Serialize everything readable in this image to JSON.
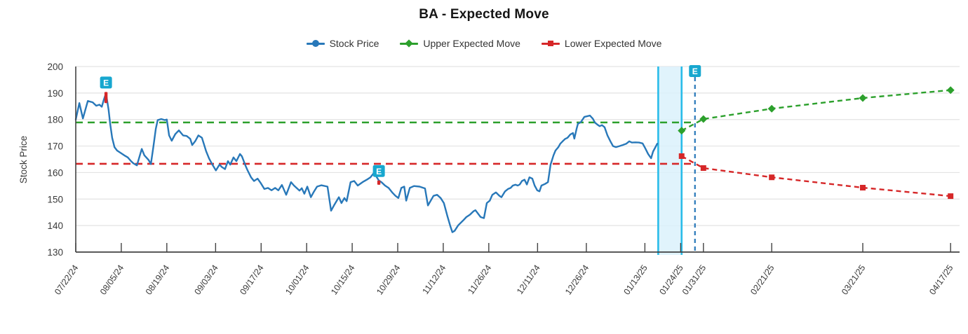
{
  "title": "BA - Expected Move",
  "legend": [
    {
      "label": "Stock Price",
      "color": "#2878b9",
      "marker": "circle"
    },
    {
      "label": "Upper Expected Move",
      "color": "#2ca02c",
      "marker": "diamond"
    },
    {
      "label": "Lower Expected Move",
      "color": "#d62728",
      "marker": "square"
    }
  ],
  "y_axis": {
    "title": "Stock Price",
    "min": 130,
    "max": 200,
    "step": 10
  },
  "x_axis": {
    "ticks": [
      {
        "label": "07/22/24",
        "d": 0
      },
      {
        "label": "08/05/24",
        "d": 14
      },
      {
        "label": "08/19/24",
        "d": 28
      },
      {
        "label": "09/03/24",
        "d": 43
      },
      {
        "label": "09/17/24",
        "d": 57
      },
      {
        "label": "10/01/24",
        "d": 71
      },
      {
        "label": "10/15/24",
        "d": 85
      },
      {
        "label": "10/29/24",
        "d": 99
      },
      {
        "label": "11/12/24",
        "d": 113
      },
      {
        "label": "11/26/24",
        "d": 127
      },
      {
        "label": "12/11/24",
        "d": 142
      },
      {
        "label": "12/26/24",
        "d": 157
      },
      {
        "label": "01/13/25",
        "d": 175
      },
      {
        "label": "01/24/25",
        "d": 186
      },
      {
        "label": "01/31/25",
        "d": 193
      },
      {
        "label": "02/21/25",
        "d": 214
      },
      {
        "label": "03/21/25",
        "d": 242
      },
      {
        "label": "04/17/25",
        "d": 269
      }
    ]
  },
  "chart_data": {
    "type": "line",
    "title": "BA - Expected Move",
    "xlabel": "",
    "ylabel": "Stock Price",
    "ylim": [
      130,
      200
    ],
    "grid": "horizontal",
    "legend_position": "top-center",
    "x_unit": "calendar days since 07/22/24",
    "series": [
      {
        "name": "Stock Price",
        "color": "#2878b9",
        "style": "solid",
        "points": [
          [
            0,
            180.0
          ],
          [
            1.1,
            186.2
          ],
          [
            2.2,
            180.4
          ],
          [
            3.7,
            187.0
          ],
          [
            5.2,
            186.5
          ],
          [
            6.3,
            185.2
          ],
          [
            7.3,
            185.6
          ],
          [
            8,
            184.8
          ],
          [
            8.6,
            187.4
          ],
          [
            9.3,
            189.9
          ],
          [
            10.1,
            183.7
          ],
          [
            10.6,
            178.3
          ],
          [
            11.2,
            173.1
          ],
          [
            11.9,
            169.6
          ],
          [
            12.7,
            168.3
          ],
          [
            13.8,
            167.4
          ],
          [
            14.9,
            166.5
          ],
          [
            16,
            165.7
          ],
          [
            17,
            164.3
          ],
          [
            17.7,
            163.5
          ],
          [
            18.8,
            162.7
          ],
          [
            20.3,
            168.9
          ],
          [
            21.1,
            166.5
          ],
          [
            22.4,
            164.7
          ],
          [
            23.1,
            163.2
          ],
          [
            23.9,
            170.0
          ],
          [
            24.6,
            176.5
          ],
          [
            25.2,
            179.8
          ],
          [
            26.3,
            180.2
          ],
          [
            27.4,
            179.8
          ],
          [
            28,
            180.0
          ],
          [
            28.7,
            174.0
          ],
          [
            29.5,
            172.0
          ],
          [
            30.6,
            174.5
          ],
          [
            31.7,
            175.9
          ],
          [
            33,
            174.0
          ],
          [
            34.1,
            173.8
          ],
          [
            35.2,
            172.7
          ],
          [
            35.8,
            170.4
          ],
          [
            36.7,
            171.8
          ],
          [
            37.7,
            174.0
          ],
          [
            38.8,
            173.1
          ],
          [
            40.1,
            168.0
          ],
          [
            41,
            165.3
          ],
          [
            42.1,
            162.8
          ],
          [
            43.1,
            160.8
          ],
          [
            44.2,
            163.0
          ],
          [
            44.9,
            162.1
          ],
          [
            45.9,
            161.3
          ],
          [
            46.8,
            164.3
          ],
          [
            47.5,
            163.0
          ],
          [
            48.5,
            165.7
          ],
          [
            49.4,
            164.3
          ],
          [
            50.5,
            167.0
          ],
          [
            51.1,
            166.1
          ],
          [
            52.2,
            162.6
          ],
          [
            52.8,
            160.9
          ],
          [
            53.9,
            158.2
          ],
          [
            54.8,
            156.8
          ],
          [
            55.9,
            157.7
          ],
          [
            56.9,
            156.0
          ],
          [
            58,
            153.8
          ],
          [
            59.1,
            154.2
          ],
          [
            60.2,
            153.3
          ],
          [
            61.3,
            154.2
          ],
          [
            62.3,
            153.3
          ],
          [
            63.4,
            155.3
          ],
          [
            64.7,
            151.6
          ],
          [
            66.2,
            156.4
          ],
          [
            67.1,
            155.1
          ],
          [
            68.8,
            153.2
          ],
          [
            69.5,
            154.1
          ],
          [
            70.3,
            152.0
          ],
          [
            71.2,
            154.7
          ],
          [
            72.3,
            150.7
          ],
          [
            73.1,
            152.5
          ],
          [
            74.2,
            154.7
          ],
          [
            75.5,
            155.2
          ],
          [
            77.4,
            154.7
          ],
          [
            78.5,
            145.6
          ],
          [
            79.4,
            147.6
          ],
          [
            80.9,
            150.7
          ],
          [
            81.7,
            148.5
          ],
          [
            82.6,
            150.4
          ],
          [
            83.3,
            149.2
          ],
          [
            84.5,
            156.4
          ],
          [
            85.6,
            156.8
          ],
          [
            86.7,
            155.1
          ],
          [
            88.2,
            156.4
          ],
          [
            89.5,
            157.3
          ],
          [
            90.6,
            158.2
          ],
          [
            91.7,
            159.9
          ],
          [
            93.2,
            157.0
          ],
          [
            94,
            156.4
          ],
          [
            95.1,
            155.1
          ],
          [
            96.2,
            154.2
          ],
          [
            97.3,
            152.5
          ],
          [
            98.3,
            151.2
          ],
          [
            99.2,
            150.4
          ],
          [
            100.1,
            154.2
          ],
          [
            101,
            154.7
          ],
          [
            101.6,
            149.4
          ],
          [
            102.7,
            154.2
          ],
          [
            104,
            154.9
          ],
          [
            105.7,
            154.7
          ],
          [
            107.4,
            154.0
          ],
          [
            108.3,
            147.6
          ],
          [
            110,
            151.2
          ],
          [
            111.1,
            151.6
          ],
          [
            112.2,
            150.4
          ],
          [
            113.2,
            148.5
          ],
          [
            114.3,
            143.5
          ],
          [
            115.2,
            139.7
          ],
          [
            115.8,
            137.5
          ],
          [
            116.5,
            138.0
          ],
          [
            117.6,
            140.1
          ],
          [
            119.1,
            141.9
          ],
          [
            120.1,
            143.2
          ],
          [
            121.2,
            144.1
          ],
          [
            122.3,
            145.4
          ],
          [
            122.9,
            145.8
          ],
          [
            124.5,
            143.2
          ],
          [
            125.5,
            142.8
          ],
          [
            126.4,
            148.5
          ],
          [
            127.3,
            149.4
          ],
          [
            128.1,
            151.6
          ],
          [
            129.2,
            152.5
          ],
          [
            130.3,
            151.2
          ],
          [
            130.9,
            150.7
          ],
          [
            132,
            152.9
          ],
          [
            132.9,
            153.8
          ],
          [
            133.7,
            154.2
          ],
          [
            134.4,
            155.1
          ],
          [
            135.2,
            155.4
          ],
          [
            135.9,
            155.1
          ],
          [
            136.5,
            155.5
          ],
          [
            137.2,
            156.8
          ],
          [
            138,
            157.3
          ],
          [
            138.7,
            155.5
          ],
          [
            139.5,
            158.2
          ],
          [
            140.4,
            157.7
          ],
          [
            141.1,
            155.1
          ],
          [
            141.9,
            153.3
          ],
          [
            142.6,
            152.9
          ],
          [
            143.2,
            155.1
          ],
          [
            144.3,
            155.7
          ],
          [
            145.2,
            156.4
          ],
          [
            146,
            163.0
          ],
          [
            146.9,
            166.5
          ],
          [
            147.5,
            168.3
          ],
          [
            148.4,
            169.6
          ],
          [
            149,
            170.9
          ],
          [
            149.7,
            171.8
          ],
          [
            150.5,
            172.7
          ],
          [
            151.2,
            173.1
          ],
          [
            152.1,
            174.4
          ],
          [
            152.9,
            174.9
          ],
          [
            153.3,
            172.8
          ],
          [
            154,
            176.5
          ],
          [
            154.4,
            178.4
          ],
          [
            155.3,
            179.0
          ],
          [
            156.4,
            181.0
          ],
          [
            157.4,
            181.3
          ],
          [
            158.1,
            181.5
          ],
          [
            159,
            180.3
          ],
          [
            159.6,
            178.9
          ],
          [
            160.5,
            178.0
          ],
          [
            161.1,
            177.5
          ],
          [
            161.8,
            177.9
          ],
          [
            162.6,
            177.1
          ],
          [
            163.5,
            174.0
          ],
          [
            164.4,
            171.8
          ],
          [
            165.2,
            170.0
          ],
          [
            166.1,
            169.6
          ],
          [
            167.2,
            170.0
          ],
          [
            168.2,
            170.4
          ],
          [
            169.3,
            170.9
          ],
          [
            170.2,
            171.8
          ],
          [
            171,
            171.3
          ],
          [
            172.1,
            171.4
          ],
          [
            173.2,
            171.3
          ],
          [
            174.3,
            171.0
          ],
          [
            175.1,
            169.2
          ],
          [
            176,
            167.0
          ],
          [
            176.9,
            165.4
          ],
          [
            177.5,
            167.9
          ],
          [
            178.2,
            169.5
          ],
          [
            178.8,
            170.9
          ]
        ]
      },
      {
        "name": "Upper Expected Move",
        "color": "#2ca02c",
        "style": "dashed",
        "marker": "diamond",
        "points": [
          [
            186.3,
            175.8
          ],
          [
            193,
            180.2
          ],
          [
            214,
            184.1
          ],
          [
            242,
            188.1
          ],
          [
            269,
            191.1
          ]
        ]
      },
      {
        "name": "Lower Expected Move",
        "color": "#d62728",
        "style": "dashed",
        "marker": "square",
        "points": [
          [
            186.3,
            166.2
          ],
          [
            193,
            161.7
          ],
          [
            214,
            158.2
          ],
          [
            242,
            154.3
          ],
          [
            269,
            151.1
          ]
        ]
      }
    ],
    "reference_lines": [
      {
        "name": "upper-expected-level",
        "value": 178.9,
        "color": "#2ca02c",
        "d_from": 0,
        "d_to": 190.4
      },
      {
        "name": "lower-expected-level",
        "value": 163.3,
        "color": "#d62728",
        "d_from": 0,
        "d_to": 190.4
      }
    ],
    "highlight_band": {
      "d_from": 179.1,
      "d_to": 186.3,
      "fill": "#daf1fb",
      "border": "#29bce9"
    },
    "earnings_markers": [
      {
        "label": "E",
        "d": 9.3,
        "tick_top": 190.4,
        "tick_bottom": 186.2,
        "vline": false
      },
      {
        "label": "E",
        "d": 93.2,
        "tick_top": 157.0,
        "tick_bottom": 155.4,
        "vline": false
      },
      {
        "label": "E",
        "d": 190.4,
        "vline": true
      }
    ],
    "colors": {
      "stock": "#2878b9",
      "upper": "#2ca02c",
      "lower": "#d62728",
      "earnings_badge": "#17a7cf",
      "band_fill": "#daf1fb",
      "band_border": "#29bce9",
      "grid": "#e3e3e3",
      "axis": "#424242",
      "tick_text": "#3a3a3a"
    }
  }
}
